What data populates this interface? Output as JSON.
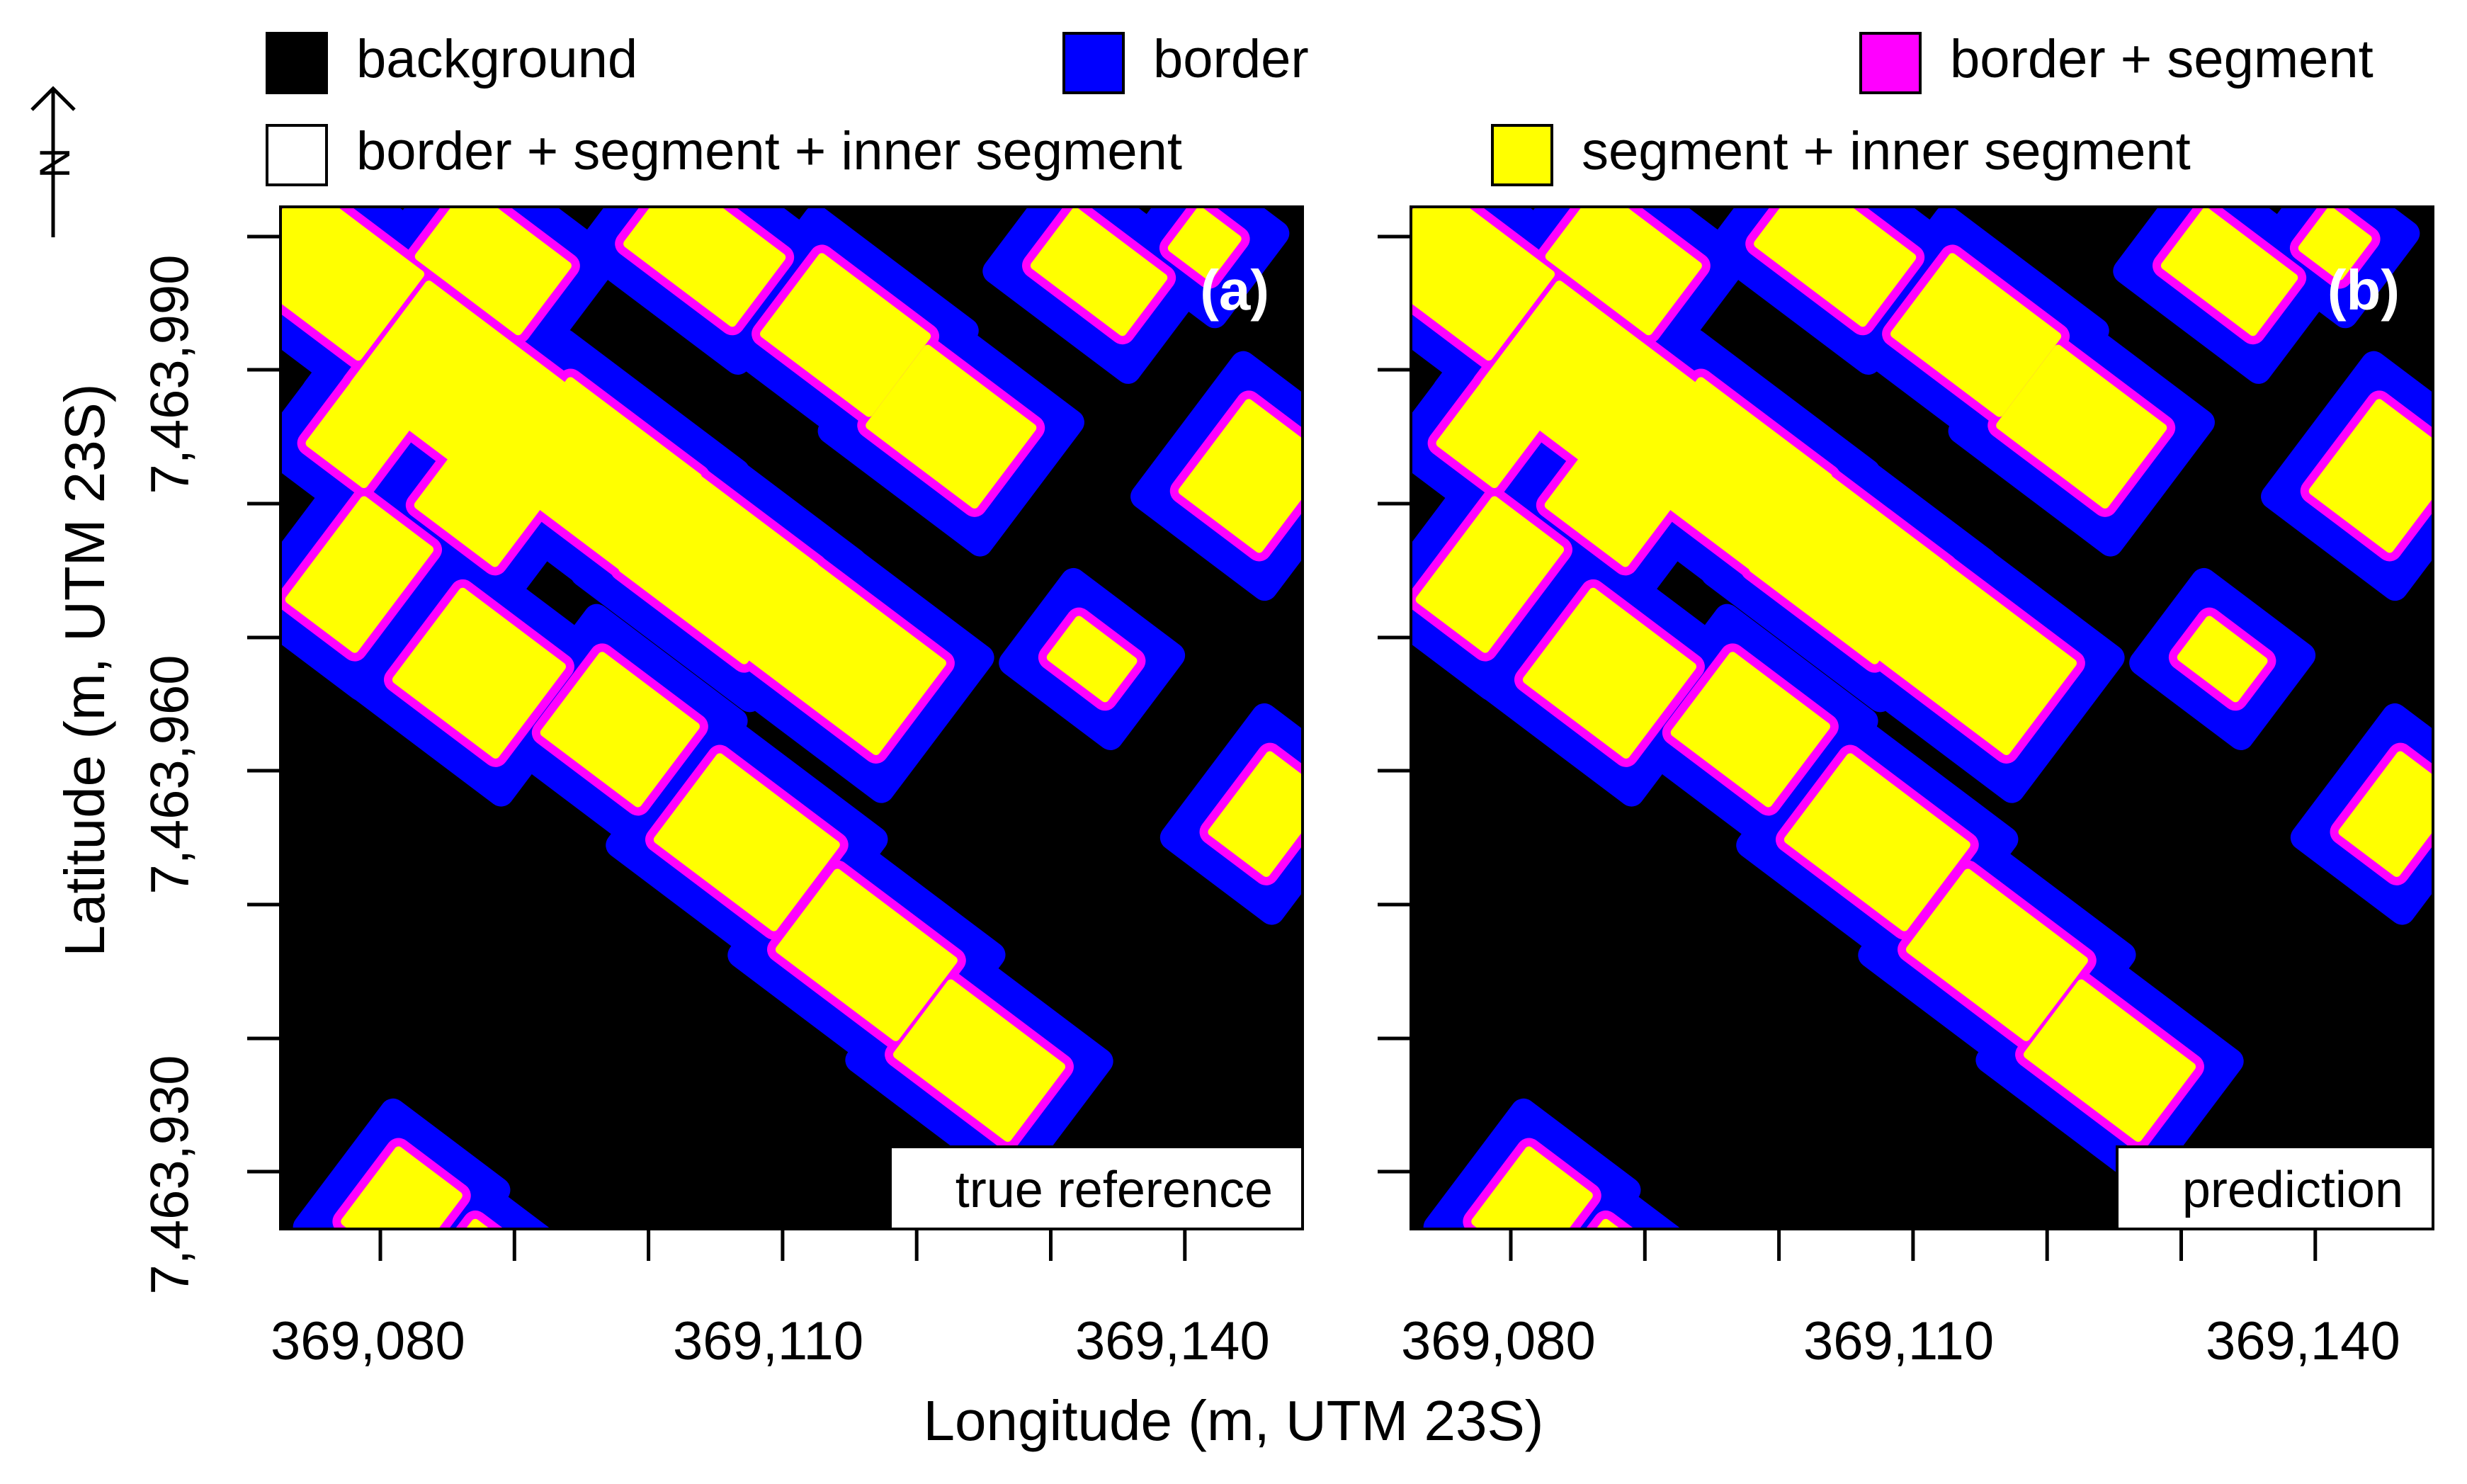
{
  "legend": {
    "items": [
      {
        "label": "background",
        "color": "#000000"
      },
      {
        "label": "border",
        "color": "#0000ff"
      },
      {
        "label": "border + segment",
        "color": "#ff00ff"
      },
      {
        "label": "border + segment + inner segment",
        "color": "#ffffff"
      },
      {
        "label": "segment + inner segment",
        "color": "#ffff00"
      }
    ]
  },
  "north_arrow": {
    "letter": "N"
  },
  "panels": [
    {
      "tag": "(a)",
      "label": "true reference"
    },
    {
      "tag": "(b)",
      "label": "prediction"
    }
  ],
  "axes": {
    "x_title": "Longitude (m, UTM 23S)",
    "y_title": "Latitude (m, UTM 23S)",
    "x_tick_labels": [
      "369,080",
      "369,110",
      "369,140"
    ],
    "y_tick_labels": [
      "7,463,990",
      "7,463,960",
      "7,463,930"
    ]
  }
}
